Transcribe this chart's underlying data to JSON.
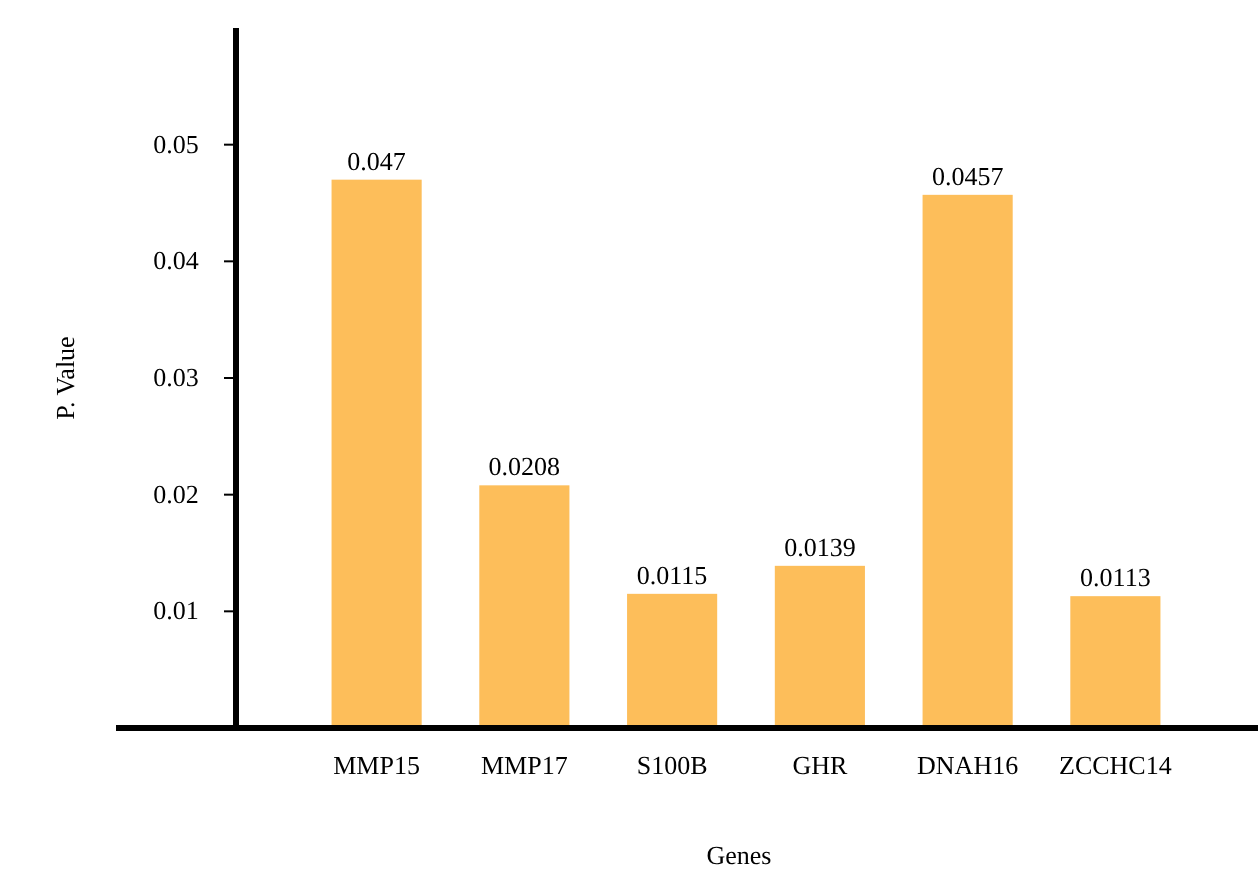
{
  "chart_data": {
    "type": "bar",
    "xlabel": "Genes",
    "ylabel": "P. Value",
    "categories": [
      "MMP15",
      "MMP17",
      "S100B",
      "GHR",
      "DNAH16",
      "ZCCHC14"
    ],
    "values": [
      0.047,
      0.0208,
      0.0115,
      0.0139,
      0.0457,
      0.0113
    ],
    "color": "#fdbe5a",
    "ylim": [
      0,
      0.06
    ],
    "yticks": [
      0.01,
      0.02,
      0.03,
      0.04,
      0.05
    ],
    "data_labels": true,
    "grid": false
  }
}
